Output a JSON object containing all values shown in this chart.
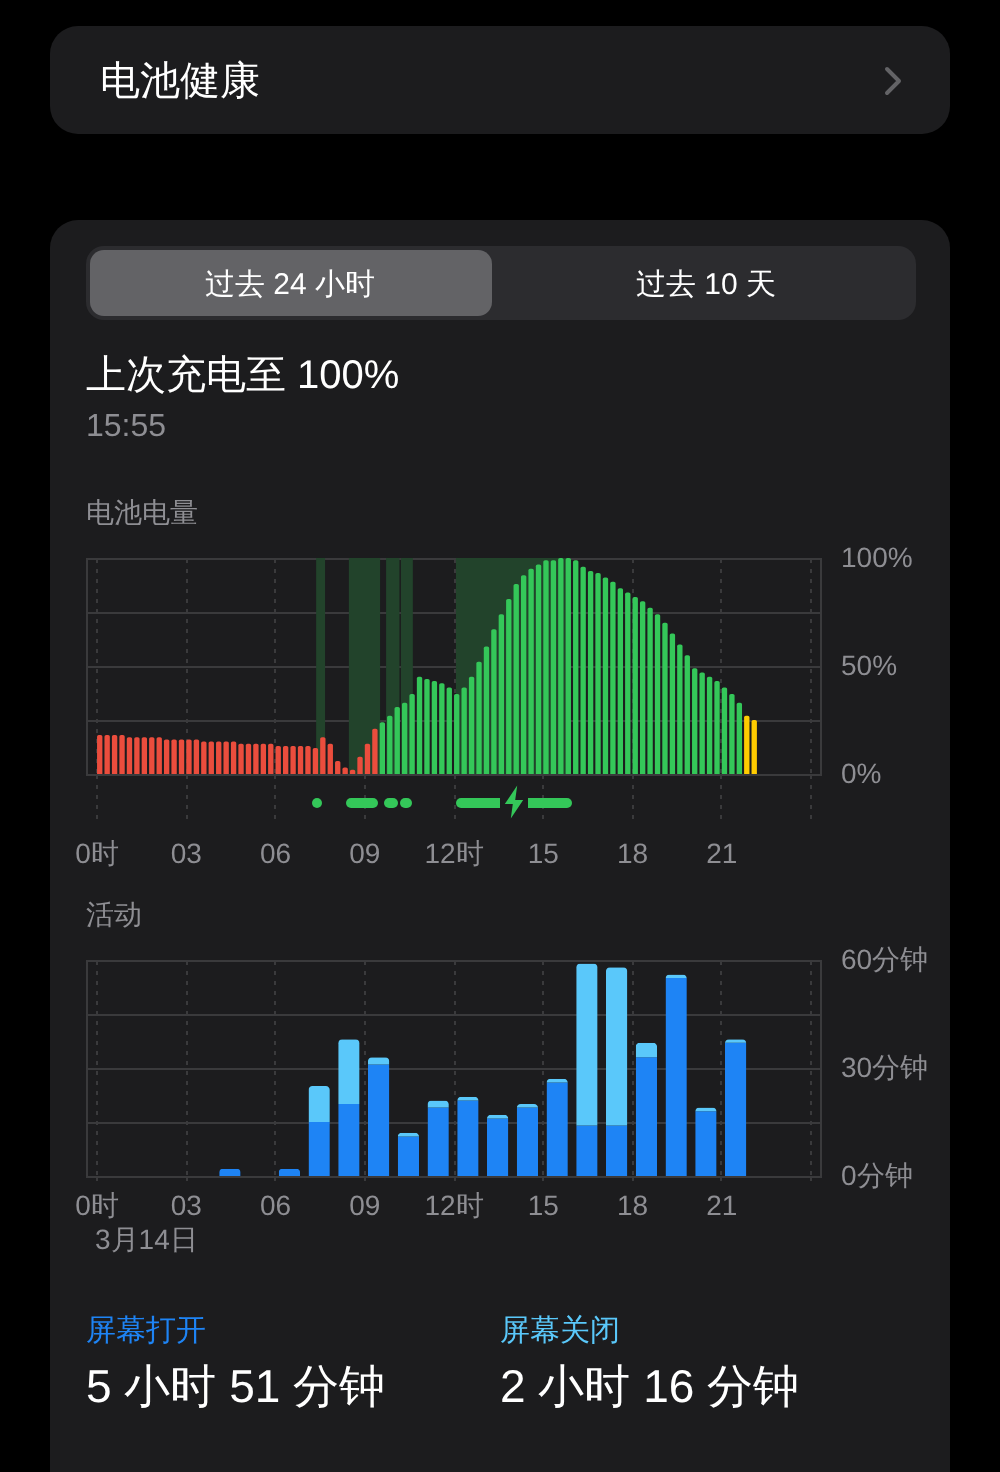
{
  "chart_data": [
    {
      "type": "other",
      "annotations": [
        "电池健康",
        "过去 24 小时",
        "过去 10 天",
        "上次充电至 100%",
        "15:55"
      ]
    },
    {
      "type": "bar",
      "title": "电池电量",
      "x": [
        0.125,
        0.375,
        0.625,
        0.875,
        1.125,
        1.375,
        1.625,
        1.875,
        2.125,
        2.375,
        2.625,
        2.875,
        3.125,
        3.375,
        3.625,
        3.875,
        4.125,
        4.375,
        4.625,
        4.875,
        5.125,
        5.375,
        5.625,
        5.875,
        6.125,
        6.375,
        6.625,
        6.875,
        7.125,
        7.375,
        7.625,
        7.875,
        8.125,
        8.375,
        8.625,
        8.875,
        9.125,
        9.375,
        9.625,
        9.875,
        10.125,
        10.375,
        10.625,
        10.875,
        11.125,
        11.375,
        11.625,
        11.875,
        12.125,
        12.375,
        12.625,
        12.875,
        13.125,
        13.375,
        13.625,
        13.875,
        14.125,
        14.375,
        14.625,
        14.875,
        15.125,
        15.375,
        15.625,
        15.875,
        16.125,
        16.375,
        16.625,
        16.875,
        17.125,
        17.375,
        17.625,
        17.875,
        18.125,
        18.375,
        18.625,
        18.875,
        19.125,
        19.375,
        19.625,
        19.875,
        20.125,
        20.375,
        20.625,
        20.875,
        21.125,
        21.375,
        21.625,
        21.875,
        22.125
      ],
      "values": [
        18,
        18,
        18,
        18,
        17,
        17,
        17,
        17,
        17,
        16,
        16,
        16,
        16,
        16,
        15,
        15,
        15,
        15,
        15,
        14,
        14,
        14,
        14,
        14,
        13,
        13,
        13,
        13,
        13,
        12,
        17,
        14,
        6,
        3,
        2,
        8,
        14,
        21,
        24,
        27,
        31,
        33,
        37,
        45,
        44,
        43,
        42,
        40,
        37,
        40,
        45,
        52,
        59,
        67,
        74,
        81,
        88,
        92,
        95,
        97,
        99,
        99,
        100,
        100,
        99,
        96,
        94,
        93,
        91,
        89,
        86,
        84,
        82,
        80,
        77,
        74,
        70,
        65,
        60,
        55,
        49,
        47,
        45,
        43,
        40,
        37,
        33,
        27,
        25
      ],
      "colors": [
        "#eb4d3d",
        "#eb4d3d",
        "#eb4d3d",
        "#eb4d3d",
        "#eb4d3d",
        "#eb4d3d",
        "#eb4d3d",
        "#eb4d3d",
        "#eb4d3d",
        "#eb4d3d",
        "#eb4d3d",
        "#eb4d3d",
        "#eb4d3d",
        "#eb4d3d",
        "#eb4d3d",
        "#eb4d3d",
        "#eb4d3d",
        "#eb4d3d",
        "#eb4d3d",
        "#eb4d3d",
        "#eb4d3d",
        "#eb4d3d",
        "#eb4d3d",
        "#eb4d3d",
        "#eb4d3d",
        "#eb4d3d",
        "#eb4d3d",
        "#eb4d3d",
        "#eb4d3d",
        "#eb4d3d",
        "#eb4d3d",
        "#eb4d3d",
        "#eb4d3d",
        "#eb4d3d",
        "#eb4d3d",
        "#eb4d3d",
        "#eb4d3d",
        "#eb4d3d",
        "#34c759",
        "#34c759",
        "#34c759",
        "#34c759",
        "#34c759",
        "#34c759",
        "#34c759",
        "#34c759",
        "#34c759",
        "#34c759",
        "#34c759",
        "#34c759",
        "#34c759",
        "#34c759",
        "#34c759",
        "#34c759",
        "#34c759",
        "#34c759",
        "#34c759",
        "#34c759",
        "#34c759",
        "#34c759",
        "#34c759",
        "#34c759",
        "#34c759",
        "#34c759",
        "#34c759",
        "#34c759",
        "#34c759",
        "#34c759",
        "#34c759",
        "#34c759",
        "#34c759",
        "#34c759",
        "#34c759",
        "#34c759",
        "#34c759",
        "#34c759",
        "#34c759",
        "#34c759",
        "#34c759",
        "#34c759",
        "#34c759",
        "#34c759",
        "#34c759",
        "#34c759",
        "#34c759",
        "#34c759",
        "#34c759",
        "#ffcc00",
        "#ffcc00"
      ],
      "xlim": [
        0,
        24
      ],
      "xticks": [
        {
          "value": 0,
          "label": "0时"
        },
        {
          "value": 3,
          "label": "03"
        },
        {
          "value": 6,
          "label": "06"
        },
        {
          "value": 9,
          "label": "09"
        },
        {
          "value": 12,
          "label": "12时"
        },
        15,
        18,
        21,
        {
          "value": 24,
          "label": null
        }
      ],
      "ylim": [
        0,
        100
      ],
      "yticks": [
        {
          "value": 0,
          "label": "0%"
        },
        {
          "value": 25,
          "label": null
        },
        {
          "value": 50,
          "label": "50%"
        },
        {
          "value": 75,
          "label": null
        },
        {
          "value": 100,
          "label": "100%"
        }
      ],
      "grid": true,
      "bands": [
        {
          "axis": "x",
          "from": 7.4,
          "to": 7.7,
          "color": "#22432b"
        },
        {
          "axis": "x",
          "from": 8.5,
          "to": 9.55,
          "color": "#22432b"
        },
        {
          "axis": "x",
          "from": 9.75,
          "to": 10.2,
          "color": "#22432b"
        },
        {
          "axis": "x",
          "from": 10.25,
          "to": 10.65,
          "color": "#22432b"
        },
        {
          "axis": "x",
          "from": 12.1,
          "to": 15.9,
          "color": "#22432b"
        }
      ]
    },
    {
      "type": "bar",
      "title": "活动",
      "xlabel": "3月14日",
      "stacked": true,
      "x": [
        4.5,
        6.5,
        7.5,
        8.5,
        9.5,
        10.5,
        11.5,
        12.5,
        13.5,
        14.5,
        15.5,
        16.5,
        17.5,
        18.5,
        19.5,
        20.5,
        21.5
      ],
      "series": [
        {
          "name": "屏幕打开",
          "color": "#1e84f5",
          "values": [
            2,
            2,
            15,
            20,
            31,
            11,
            19,
            21,
            16,
            19,
            26,
            14,
            14,
            33,
            55,
            18,
            37
          ]
        },
        {
          "name": "屏幕关闭",
          "color": "#5ac8fa",
          "values": [
            null,
            null,
            10,
            18,
            2,
            1,
            2,
            1,
            1,
            1,
            1,
            45,
            44,
            4,
            1,
            1,
            1
          ]
        }
      ],
      "xlim": [
        0,
        24
      ],
      "xticks": [
        {
          "value": 0,
          "label": "0时"
        },
        {
          "value": 3,
          "label": "03"
        },
        {
          "value": 6,
          "label": "06"
        },
        {
          "value": 9,
          "label": "09"
        },
        {
          "value": 12,
          "label": "12时"
        },
        15,
        18,
        21,
        {
          "value": 24,
          "label": null
        }
      ],
      "ylim": [
        0,
        60
      ],
      "yticks": [
        {
          "value": 0,
          "label": "0分钟"
        },
        {
          "value": 15,
          "label": null
        },
        {
          "value": 30,
          "label": "30分钟"
        },
        {
          "value": 45,
          "label": null
        },
        {
          "value": 60,
          "label": "60分钟"
        }
      ],
      "grid": true,
      "legend": "bottom",
      "annotations": [
        "5 小时 51 分钟",
        "2 小时 16 分钟"
      ]
    }
  ]
}
